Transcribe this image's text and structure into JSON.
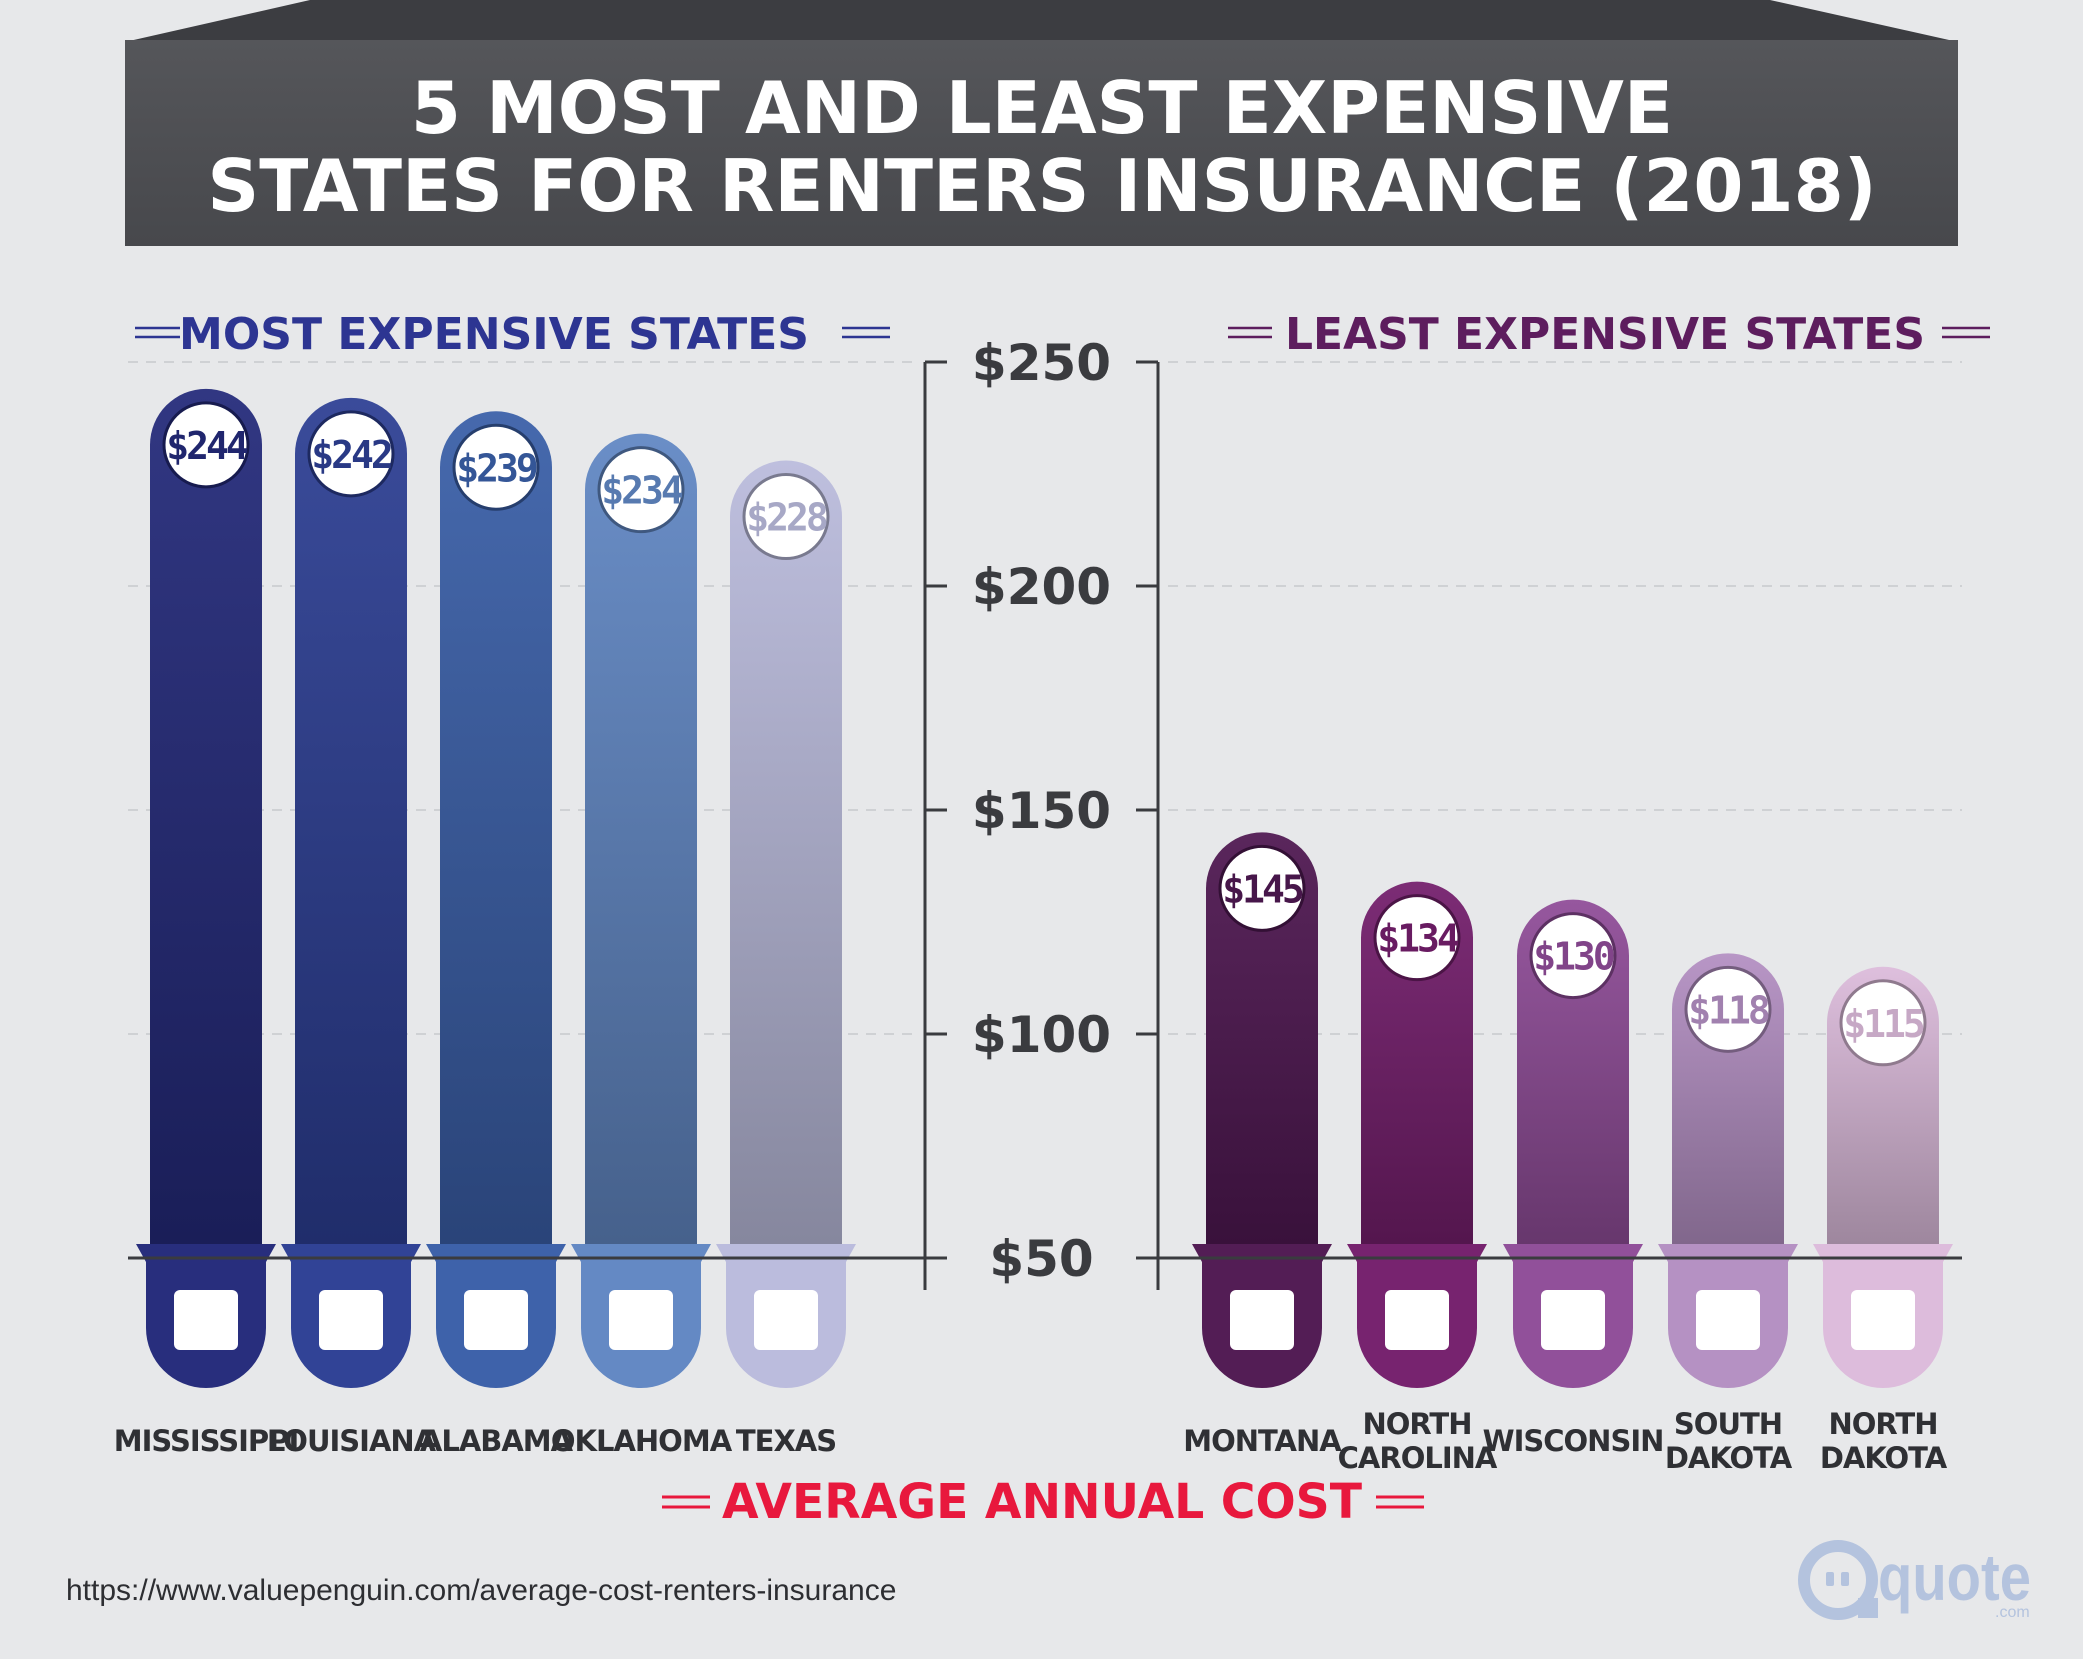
{
  "title": {
    "line1": "5 MOST AND LEAST EXPENSIVE",
    "line2": "STATES FOR RENTERS INSURANCE (2018)"
  },
  "most": {
    "heading": "MOST EXPENSIVE STATES"
  },
  "least": {
    "heading": "LEAST EXPENSIVE STATES"
  },
  "xlabel": "AVERAGE ANNUAL COST",
  "source": "https://www.valuepenguin.com/average-cost-renters-insurance",
  "logo": {
    "text": "quote",
    "suffix": ".com"
  },
  "colors": {
    "most": [
      "#242a7a",
      "#2d3f94",
      "#3a5fa8",
      "#6187c3",
      "#babbdc"
    ],
    "least": [
      "#4f1852",
      "#741e6c",
      "#8f4c98",
      "#b38fc2",
      "#dcbbdb"
    ],
    "title_bg": "#4e4f53",
    "accent_red": "#e8183d"
  },
  "chart_data": {
    "type": "bar",
    "title": "5 MOST AND LEAST EXPENSIVE STATES FOR RENTERS INSURANCE (2018)",
    "ylabel": "",
    "xlabel": "AVERAGE ANNUAL COST",
    "ylim": [
      50,
      250
    ],
    "yticks": [
      {
        "value": 250,
        "label": "$250"
      },
      {
        "value": 200,
        "label": "$200"
      },
      {
        "value": 150,
        "label": "$150"
      },
      {
        "value": 100,
        "label": "$100"
      },
      {
        "value": 50,
        "label": "$50"
      }
    ],
    "groups": [
      {
        "name": "MOST EXPENSIVE STATES",
        "bars": [
          {
            "state": "MISSISSIPPI",
            "value": 244,
            "label": "$244"
          },
          {
            "state": "LOUISIANA",
            "value": 242,
            "label": "$242"
          },
          {
            "state": "ALABAMA",
            "value": 239,
            "label": "$239"
          },
          {
            "state": "OKLAHOMA",
            "value": 234,
            "label": "$234"
          },
          {
            "state": "TEXAS",
            "value": 228,
            "label": "$228"
          }
        ]
      },
      {
        "name": "LEAST EXPENSIVE STATES",
        "bars": [
          {
            "state": "MONTANA",
            "value": 145,
            "label": "$145"
          },
          {
            "state": "NORTH CAROLINA",
            "value": 134,
            "label": "$134"
          },
          {
            "state": "WISCONSIN",
            "value": 130,
            "label": "$130"
          },
          {
            "state": "SOUTH DAKOTA",
            "value": 118,
            "label": "$118"
          },
          {
            "state": "NORTH DAKOTA",
            "value": 115,
            "label": "$115"
          }
        ]
      }
    ]
  }
}
